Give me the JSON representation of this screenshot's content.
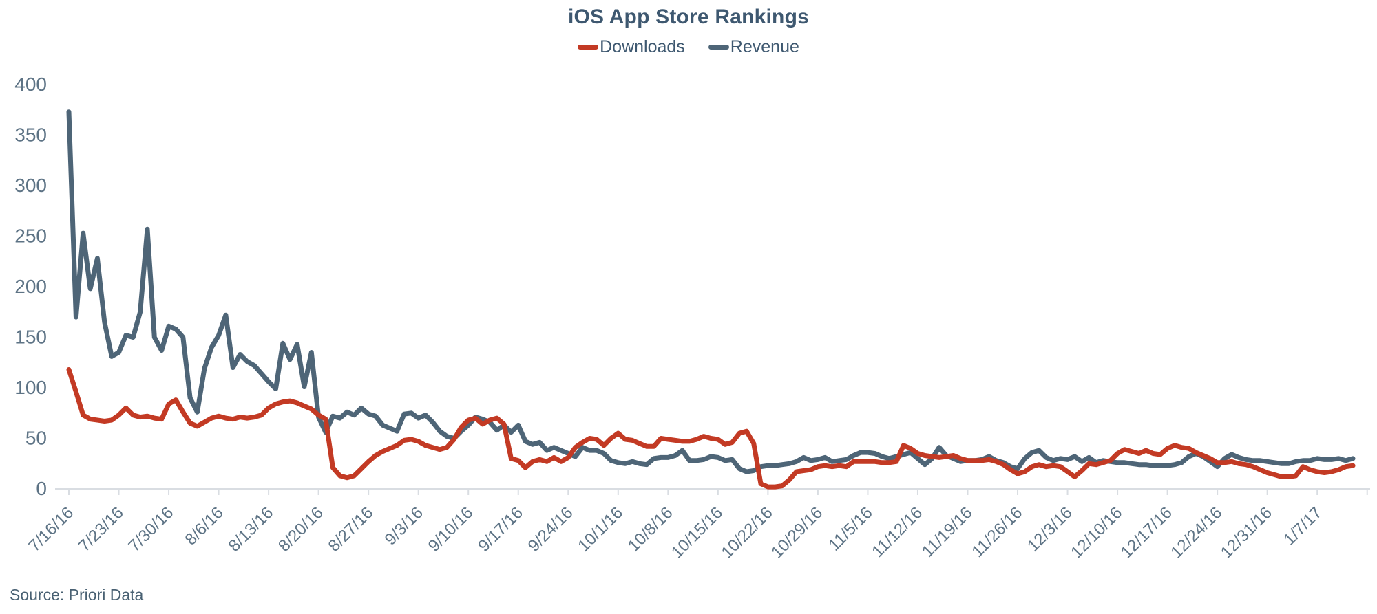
{
  "header": {
    "title": "iOS App Store Rankings"
  },
  "legend": {
    "items": [
      {
        "label": "Downloads",
        "color": "#c33a24"
      },
      {
        "label": "Revenue",
        "color": "#4e6577"
      }
    ]
  },
  "footer": {
    "source": "Source: Priori Data"
  },
  "chart_data": {
    "type": "line",
    "title": "iOS App Store Rankings",
    "xlabel": "",
    "ylabel": "",
    "ylim": [
      0,
      400
    ],
    "yticks": [
      0,
      50,
      100,
      150,
      200,
      250,
      300,
      350,
      400
    ],
    "grid": false,
    "legend_position": "top",
    "axis_color": "#d9dde2",
    "label_color": "#5d7385",
    "x_start_date": "7/16/16",
    "x_frequency": "daily",
    "x_tick_every_n_points": 7,
    "x_tick_labels": [
      "7/16/16",
      "7/23/16",
      "7/30/16",
      "8/6/16",
      "8/13/16",
      "8/20/16",
      "8/27/16",
      "9/3/16",
      "9/10/16",
      "9/17/16",
      "9/24/16",
      "10/1/16",
      "10/8/16",
      "10/15/16",
      "10/22/16",
      "10/29/16",
      "11/5/16",
      "11/12/16",
      "11/19/16",
      "11/26/16",
      "12/3/16",
      "12/10/16",
      "12/17/16",
      "12/24/16",
      "12/31/16",
      "1/7/17"
    ],
    "series": [
      {
        "name": "Downloads",
        "color": "#c33a24",
        "values": [
          118,
          96,
          73,
          69,
          68,
          67,
          68,
          73,
          80,
          73,
          71,
          72,
          70,
          69,
          84,
          88,
          76,
          65,
          62,
          66,
          70,
          72,
          70,
          69,
          71,
          70,
          71,
          73,
          80,
          84,
          86,
          87,
          85,
          82,
          79,
          73,
          69,
          21,
          13,
          11,
          13,
          20,
          27,
          33,
          37,
          40,
          43,
          48,
          49,
          47,
          43,
          41,
          39,
          41,
          49,
          61,
          68,
          70,
          64,
          68,
          70,
          64,
          30,
          28,
          21,
          27,
          29,
          27,
          31,
          27,
          31,
          41,
          46,
          50,
          49,
          43,
          50,
          55,
          49,
          48,
          45,
          42,
          42,
          50,
          49,
          48,
          47,
          47,
          49,
          52,
          50,
          49,
          44,
          46,
          55,
          57,
          45,
          5,
          2,
          2,
          3,
          9,
          17,
          18,
          19,
          22,
          23,
          22,
          23,
          22,
          27,
          27,
          27,
          27,
          26,
          26,
          27,
          43,
          40,
          35,
          33,
          32,
          31,
          32,
          33,
          30,
          28,
          28,
          28,
          29,
          27,
          24,
          19,
          15,
          17,
          22,
          24,
          22,
          23,
          22,
          17,
          12,
          18,
          25,
          24,
          26,
          28,
          35,
          39,
          37,
          35,
          38,
          35,
          34,
          40,
          43,
          41,
          40,
          36,
          33,
          30,
          26,
          26,
          27,
          25,
          24,
          22,
          19,
          16,
          14,
          12,
          12,
          13,
          22,
          19,
          17,
          16,
          17,
          19,
          22,
          23
        ]
      },
      {
        "name": "Revenue",
        "color": "#4e6577",
        "values": [
          373,
          170,
          253,
          198,
          228,
          165,
          131,
          135,
          152,
          150,
          175,
          257,
          150,
          137,
          161,
          158,
          150,
          90,
          76,
          119,
          140,
          152,
          172,
          120,
          133,
          126,
          122,
          114,
          106,
          99,
          144,
          128,
          143,
          101,
          135,
          71,
          56,
          72,
          70,
          76,
          73,
          80,
          74,
          72,
          63,
          60,
          57,
          74,
          75,
          70,
          73,
          66,
          57,
          52,
          50,
          57,
          63,
          71,
          69,
          66,
          58,
          63,
          56,
          63,
          47,
          44,
          46,
          38,
          41,
          38,
          35,
          32,
          41,
          38,
          38,
          35,
          28,
          26,
          25,
          27,
          25,
          24,
          30,
          31,
          31,
          33,
          38,
          28,
          28,
          29,
          32,
          31,
          28,
          29,
          20,
          17,
          18,
          22,
          23,
          23,
          24,
          25,
          27,
          31,
          28,
          29,
          31,
          27,
          28,
          29,
          33,
          36,
          36,
          35,
          32,
          30,
          32,
          34,
          36,
          30,
          24,
          30,
          41,
          33,
          30,
          27,
          28,
          28,
          29,
          32,
          28,
          26,
          22,
          20,
          30,
          36,
          38,
          31,
          28,
          30,
          29,
          32,
          27,
          31,
          26,
          28,
          27,
          26,
          26,
          25,
          24,
          24,
          23,
          23,
          23,
          24,
          26,
          32,
          35,
          32,
          27,
          22,
          30,
          34,
          31,
          29,
          28,
          28,
          27,
          26,
          25,
          25,
          27,
          28,
          28,
          30,
          29,
          29,
          30,
          28,
          30
        ]
      }
    ],
    "source": "Source: Priori Data"
  }
}
